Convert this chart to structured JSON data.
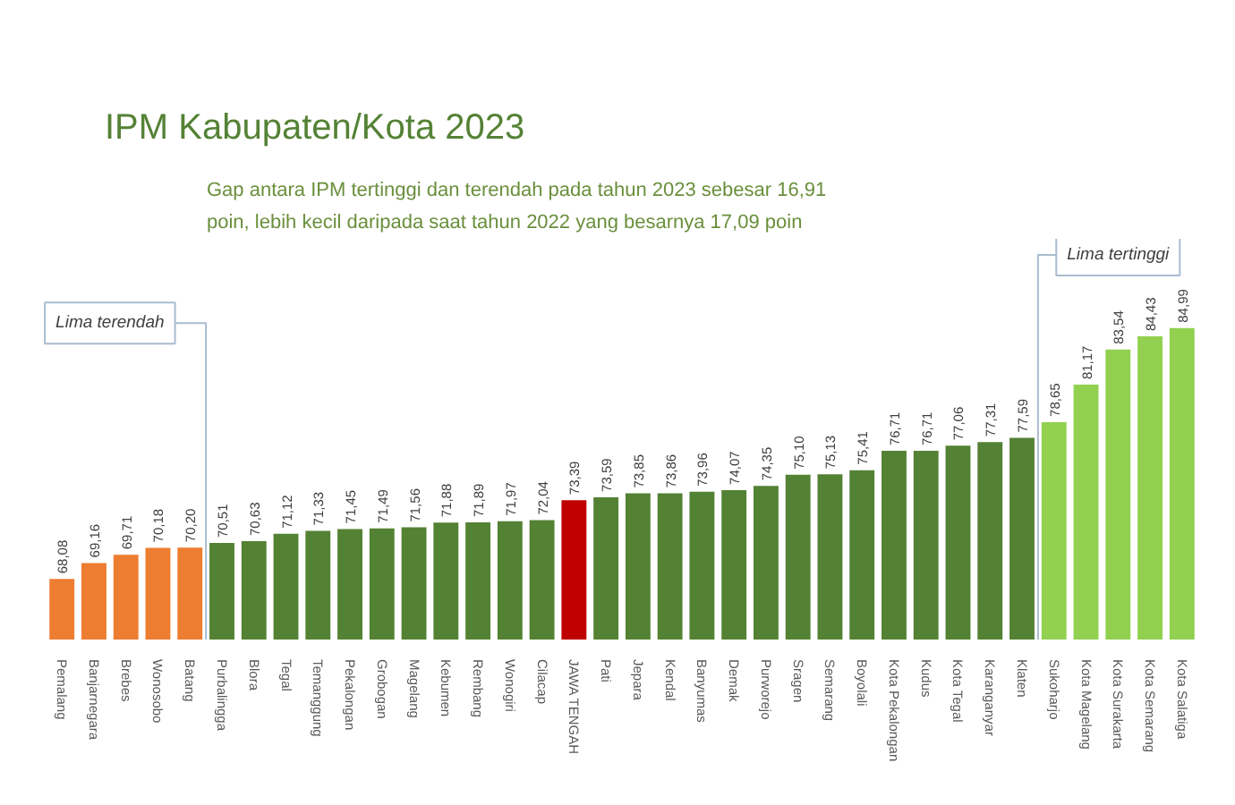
{
  "chart_data": {
    "type": "bar",
    "title": "IPM Kabupaten/Kota 2023",
    "subtitle": "Gap antara IPM tertinggi dan terendah pada tahun 2023 sebesar 16,91 poin, lebih kecil daripada saat tahun 2022 yang besarnya 17,09 poin",
    "categories": [
      "Pemalang",
      "Banjarnegara",
      "Brebes",
      "Wonosobo",
      "Batang",
      "Purbalingga",
      "Blora",
      "Tegal",
      "Temanggung",
      "Pekalongan",
      "Grobogan",
      "Magelang",
      "Kebumen",
      "Rembang",
      "Wonogiri",
      "Cilacap",
      "JAWA TENGAH",
      "Pati",
      "Jepara",
      "Kendal",
      "Banyumas",
      "Demak",
      "Purworejo",
      "Sragen",
      "Semarang",
      "Boyolali",
      "Kota Pekalongan",
      "Kudus",
      "Kota Tegal",
      "Karanganyar",
      "Klaten",
      "Sukoharjo",
      "Kota Magelang",
      "Kota Surakarta",
      "Kota Semarang",
      "Kota Salatiga"
    ],
    "values": [
      68.08,
      69.16,
      69.71,
      70.18,
      70.2,
      70.51,
      70.63,
      71.12,
      71.33,
      71.45,
      71.49,
      71.56,
      71.88,
      71.89,
      71.97,
      72.04,
      73.39,
      73.59,
      73.85,
      73.86,
      73.96,
      74.07,
      74.35,
      75.1,
      75.13,
      75.41,
      76.71,
      76.71,
      77.06,
      77.31,
      77.59,
      78.65,
      81.17,
      83.54,
      84.43,
      84.99
    ],
    "value_labels": [
      "68,08",
      "69,16",
      "69,71",
      "70,18",
      "70,20",
      "70,51",
      "70,63",
      "71,12",
      "71,33",
      "71,45",
      "71,49",
      "71,56",
      "71,88",
      "71,89",
      "71,97",
      "72,04",
      "73,39",
      "73,59",
      "73,85",
      "73,86",
      "73,96",
      "74,07",
      "74,35",
      "75,10",
      "75,13",
      "75,41",
      "76,71",
      "76,71",
      "77,06",
      "77,31",
      "77,59",
      "78,65",
      "81,17",
      "83,54",
      "84,43",
      "84,99"
    ],
    "colors": [
      "#ed7d31",
      "#ed7d31",
      "#ed7d31",
      "#ed7d31",
      "#ed7d31",
      "#548235",
      "#548235",
      "#548235",
      "#548235",
      "#548235",
      "#548235",
      "#548235",
      "#548235",
      "#548235",
      "#548235",
      "#548235",
      "#c00000",
      "#548235",
      "#548235",
      "#548235",
      "#548235",
      "#548235",
      "#548235",
      "#548235",
      "#548235",
      "#548235",
      "#548235",
      "#548235",
      "#548235",
      "#548235",
      "#548235",
      "#92d050",
      "#92d050",
      "#92d050",
      "#92d050",
      "#92d050"
    ],
    "ylim": [
      64,
      91
    ],
    "tick_labels": "x",
    "annotations": [
      "Lima terendah",
      "Lima tertinggi"
    ]
  }
}
